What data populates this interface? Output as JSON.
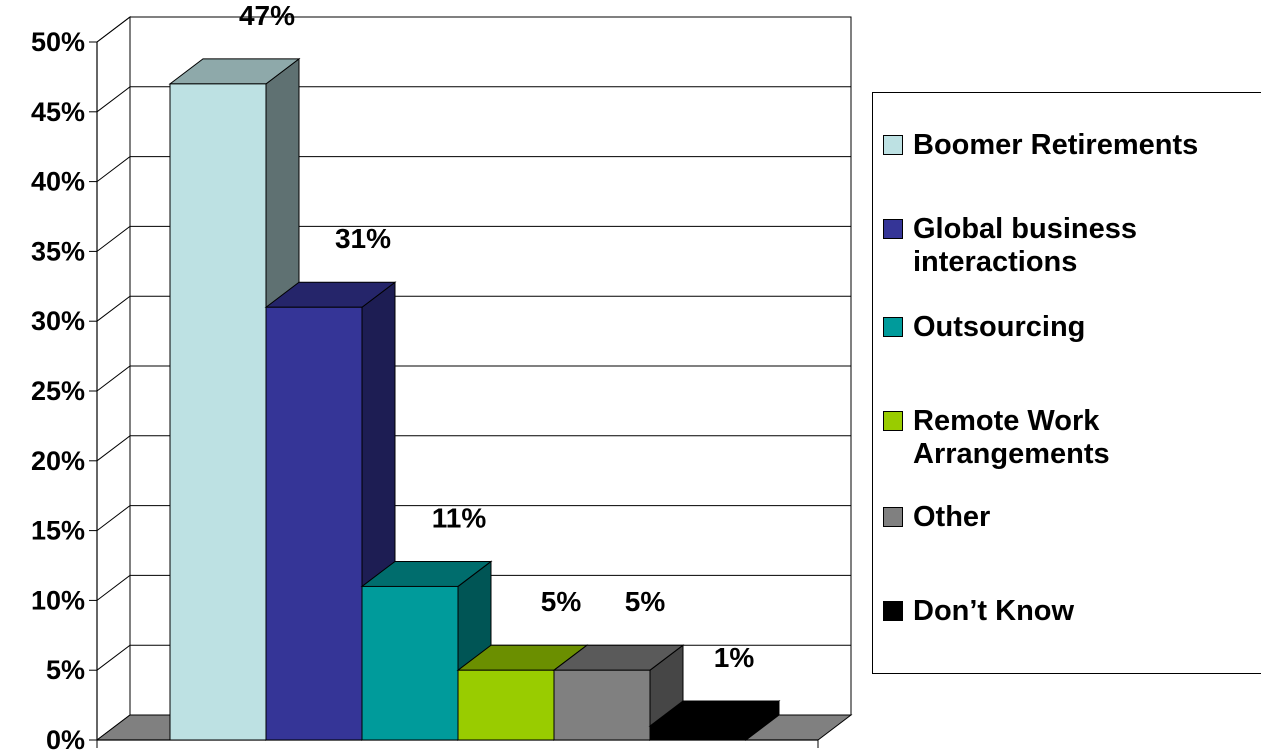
{
  "chart_data": {
    "type": "bar",
    "style": "3d-column",
    "categories": [
      "Boomer Retirements",
      "Global business interactions",
      "Outsourcing",
      "Remote Work Arrangements",
      "Other",
      "Don’t Know"
    ],
    "values": [
      47,
      31,
      11,
      5,
      5,
      1
    ],
    "value_labels": [
      "47%",
      "31%",
      "11%",
      "5%",
      "5%",
      "1%"
    ],
    "colors": [
      "#BDE1E3",
      "#353597",
      "#009B9B",
      "#99CC00",
      "#808080",
      "#000000"
    ],
    "ylim": [
      0,
      50
    ],
    "y_ticks": [
      "0%",
      "5%",
      "10%",
      "15%",
      "20%",
      "25%",
      "30%",
      "35%",
      "40%",
      "45%",
      "50%"
    ],
    "grid": true,
    "legend_position": "right",
    "title": "",
    "xlabel": "",
    "ylabel": ""
  },
  "legend": {
    "items": [
      {
        "lines": [
          "Boomer Retirements"
        ],
        "color": "#BDE1E3"
      },
      {
        "lines": [
          "Global business",
          "interactions"
        ],
        "color": "#353597"
      },
      {
        "lines": [
          "Outsourcing"
        ],
        "color": "#009B9B"
      },
      {
        "lines": [
          "Remote Work",
          "Arrangements"
        ],
        "color": "#99CC00"
      },
      {
        "lines": [
          "Other"
        ],
        "color": "#808080"
      },
      {
        "lines": [
          "Don’t Know"
        ],
        "color": "#000000"
      }
    ]
  }
}
